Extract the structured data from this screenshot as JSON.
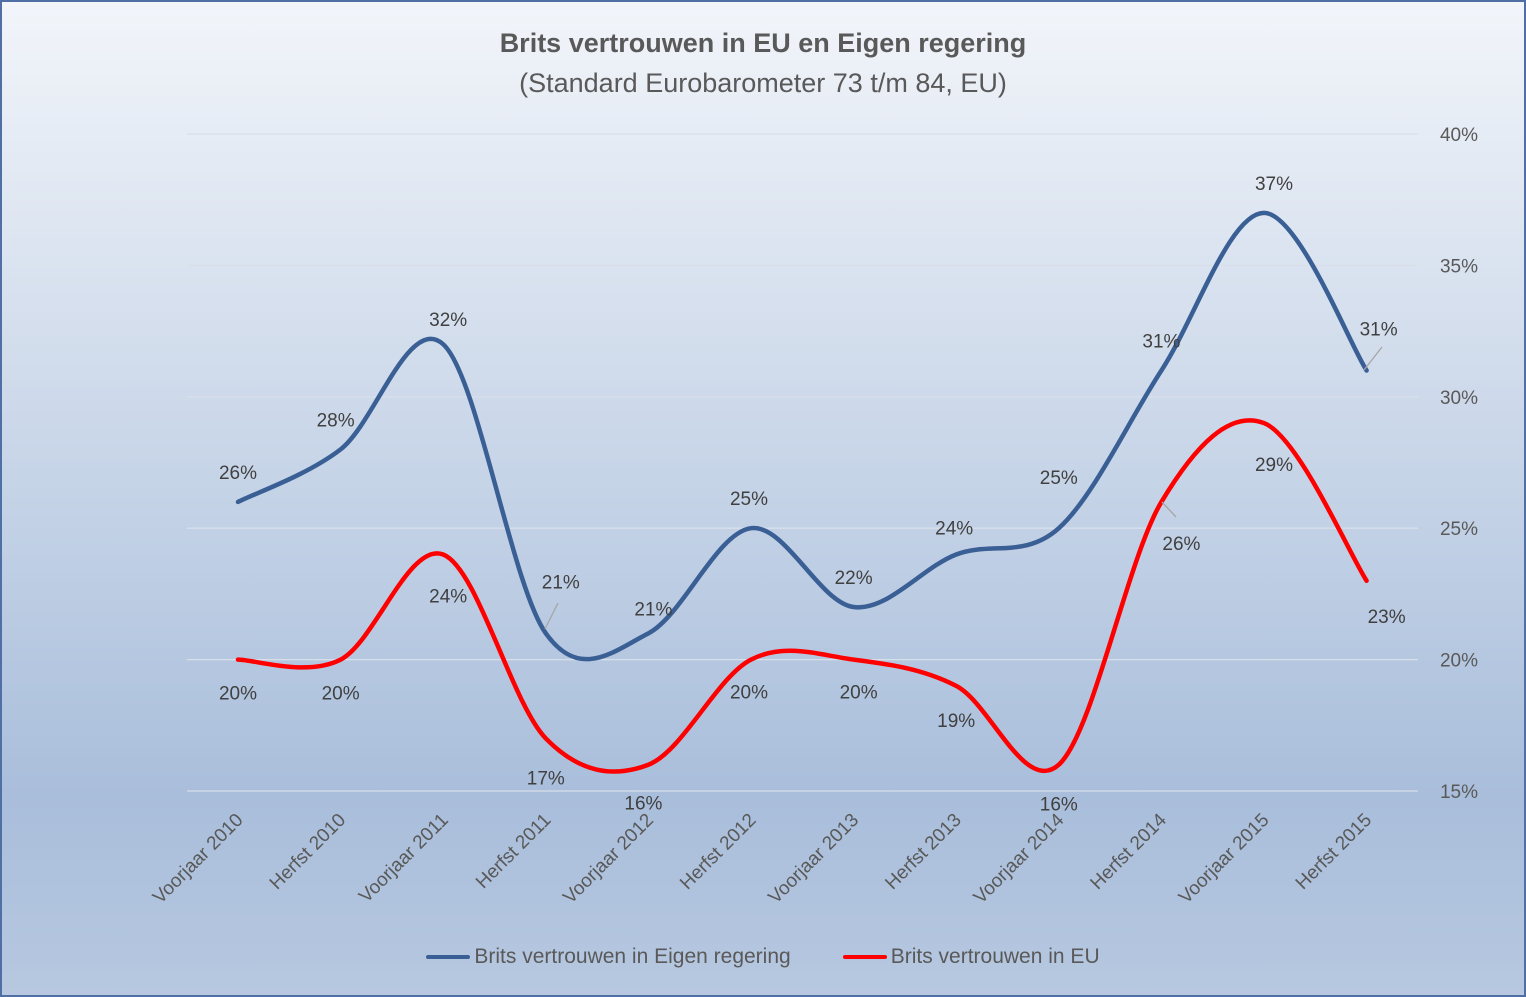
{
  "colors": {
    "government": "#3a5f94",
    "eu": "#ff0000"
  },
  "chart_data": {
    "type": "line",
    "title": "Brits vertrouwen in EU en Eigen regering",
    "subtitle": "(Standard Eurobarometer  73 t/m 84, EU)",
    "categories": [
      "Voorjaar 2010",
      "Herfst 2010",
      "Voorjaar 2011",
      "Herfst 2011",
      "Voorjaar 2012",
      "Herfst 2012",
      "Voorjaar 2013",
      "Herfst 2013",
      "Voorjaar 2014",
      "Herfst 2014",
      "Voorjaar 2015",
      "Herfst 2015"
    ],
    "series": [
      {
        "name": "Brits vertrouwen in Eigen regering",
        "values": [
          26,
          28,
          32,
          21,
          21,
          25,
          22,
          24,
          25,
          31,
          37,
          31
        ],
        "labels": [
          "26%",
          "28%",
          "32%",
          "21%",
          "21%",
          "25%",
          "22%",
          "24%",
          "25%",
          "31%",
          "37%",
          "31%"
        ]
      },
      {
        "name": "Brits vertrouwen in EU",
        "values": [
          20,
          20,
          24,
          17,
          16,
          20,
          20,
          19,
          16,
          26,
          29,
          23
        ],
        "labels": [
          "20%",
          "20%",
          "24%",
          "17%",
          "16%",
          "20%",
          "20%",
          "19%",
          "16%",
          "26%",
          "29%",
          "23%"
        ]
      }
    ],
    "ylim": [
      15,
      40
    ],
    "yticks": [
      15,
      20,
      25,
      30,
      35,
      40
    ],
    "ytick_labels": [
      "15%",
      "20%",
      "25%",
      "30%",
      "35%",
      "40%"
    ],
    "y_axis_side": "right",
    "grid": true,
    "smooth": true,
    "legend_position": "bottom"
  }
}
